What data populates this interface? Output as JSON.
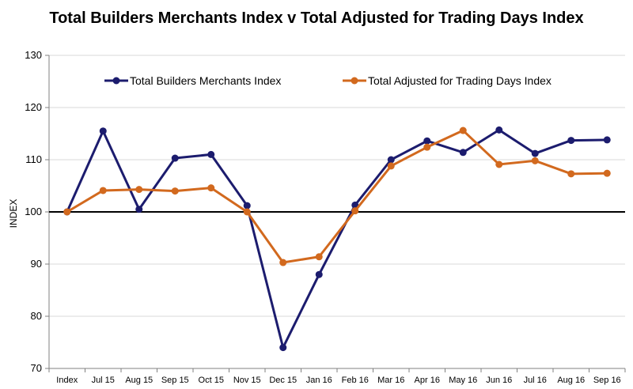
{
  "chart_data": {
    "type": "line",
    "title": "Total Builders Merchants Index v Total Adjusted for Trading Days Index",
    "xlabel": "",
    "ylabel": "INDEX",
    "ylim": [
      70,
      130
    ],
    "yticks": [
      70,
      80,
      90,
      100,
      110,
      120,
      130
    ],
    "categories": [
      "Index",
      "Jul 15",
      "Aug 15",
      "Sep 15",
      "Oct 15",
      "Nov 15",
      "Dec 15",
      "Jan 16",
      "Feb 16",
      "Mar 16",
      "Apr 16",
      "May 16",
      "Jun 16",
      "Jul 16",
      "Aug 16",
      "Sep 16"
    ],
    "reference_line": 100,
    "grid": "horizontal",
    "legend_position": "top",
    "series": [
      {
        "name": "Total Builders Merchants Index",
        "color": "#1c1c6e",
        "values": [
          100,
          115.5,
          100.5,
          110.3,
          111,
          101.2,
          74,
          88,
          101.3,
          110,
          113.6,
          111.4,
          115.7,
          111.2,
          113.7,
          113.8
        ]
      },
      {
        "name": "Total Adjusted for Trading Days Index",
        "color": "#d2691e",
        "values": [
          100,
          104.1,
          104.3,
          104,
          104.6,
          100,
          90.3,
          91.4,
          100.2,
          108.8,
          112.4,
          115.6,
          109.1,
          109.8,
          107.3,
          107.4
        ]
      }
    ]
  }
}
